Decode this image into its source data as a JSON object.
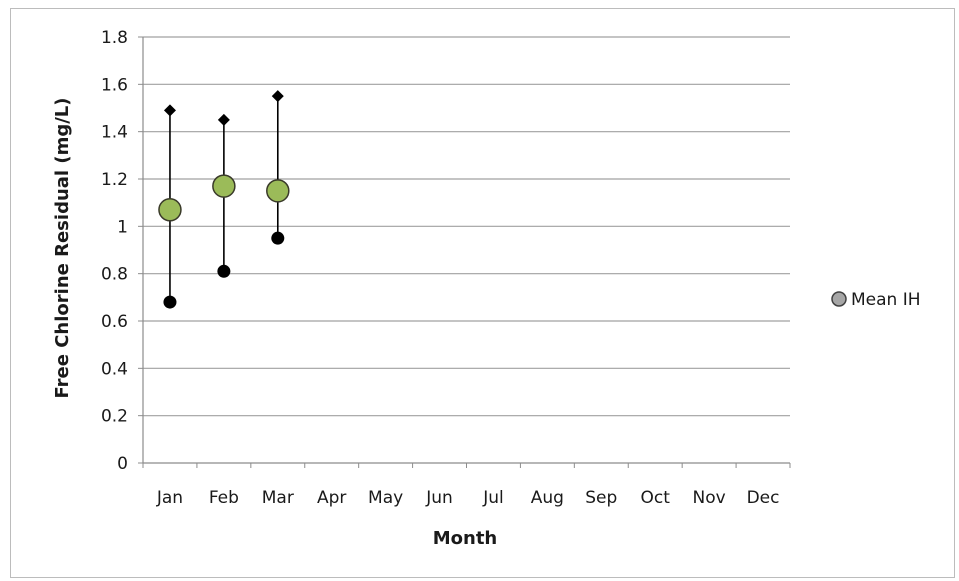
{
  "chart_data": {
    "type": "scatter",
    "xlabel": "Month",
    "ylabel": "Free Chlorine Residual (mg/L)",
    "ylim": [
      0,
      1.8
    ],
    "yticks": [
      0,
      0.2,
      0.4,
      0.6,
      0.8,
      1,
      1.2,
      1.4,
      1.6,
      1.8
    ],
    "ytick_labels": [
      "0",
      "0.2",
      "0.4",
      "0.6",
      "0.8",
      "1",
      "1.2",
      "1.4",
      "1.6",
      "1.8"
    ],
    "categories": [
      "Jan",
      "Feb",
      "Mar",
      "Apr",
      "May",
      "Jun",
      "Jul",
      "Aug",
      "Sep",
      "Oct",
      "Nov",
      "Dec"
    ],
    "grid": "horizontal",
    "legend_position": "right",
    "series": [
      {
        "name": "Mean IH",
        "marker": "circle",
        "color": "#9bbb59",
        "values": [
          1.07,
          1.17,
          1.15
        ]
      },
      {
        "marker": "diamond",
        "color": "#000000",
        "values": [
          1.49,
          1.45,
          1.55
        ]
      },
      {
        "marker": "dot",
        "color": "#000000",
        "values": [
          0.68,
          0.81,
          0.95
        ]
      }
    ],
    "legend": [
      {
        "label": "Mean IH",
        "color": "#a6a6a6"
      }
    ]
  }
}
